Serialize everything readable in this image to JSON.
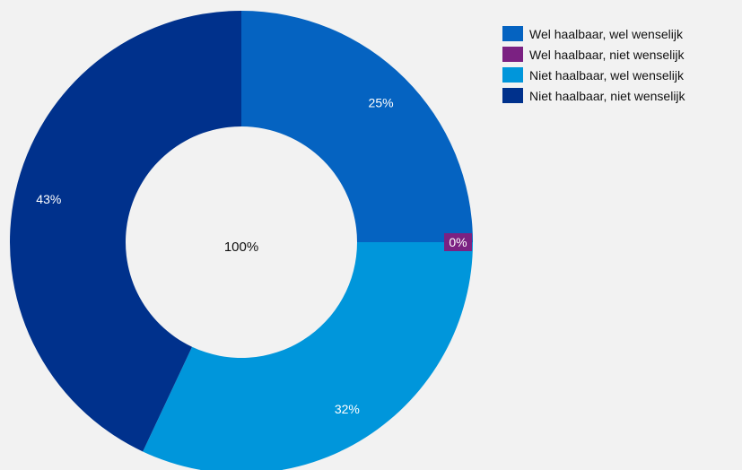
{
  "chart_data": {
    "type": "pie",
    "variant": "donut",
    "center_label": "100%",
    "legend_position": "top-right",
    "slices": [
      {
        "name": "Wel haalbaar, wel wenselijk",
        "value": 25,
        "label": "25%",
        "color": "#0563c1"
      },
      {
        "name": "Wel haalbaar, niet wenselijk",
        "value": 0,
        "label": "0%",
        "color": "#7b2182"
      },
      {
        "name": "Niet haalbaar, wel wenselijk",
        "value": 32,
        "label": "32%",
        "color": "#0096db"
      },
      {
        "name": "Niet haalbaar, niet wenselijk",
        "value": 43,
        "label": "43%",
        "color": "#00318c"
      }
    ]
  }
}
